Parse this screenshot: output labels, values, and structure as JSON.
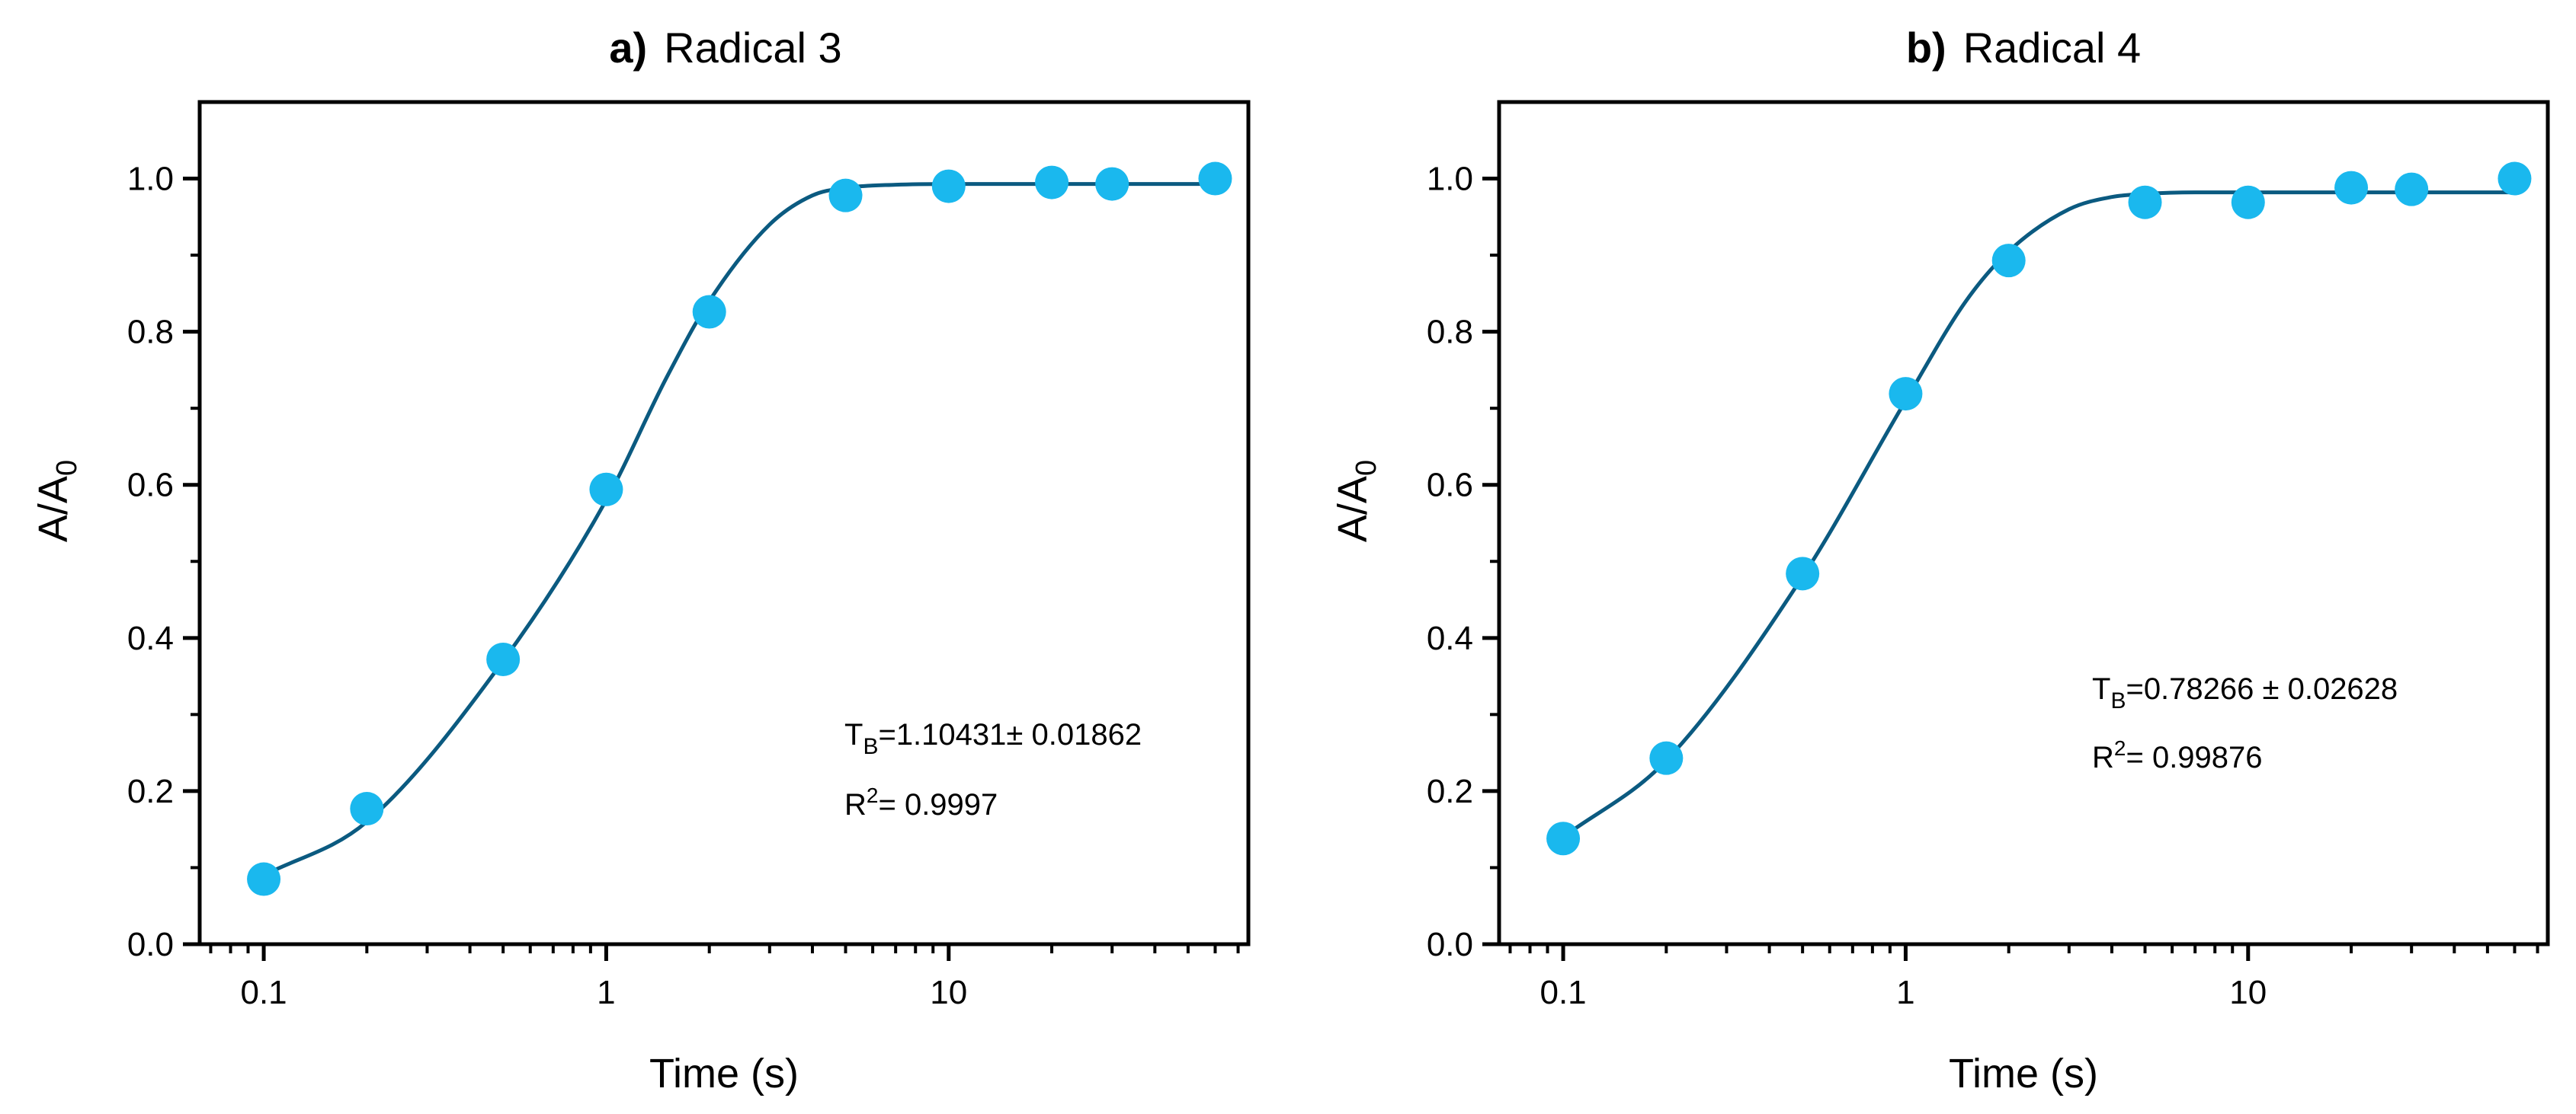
{
  "chart_data": [
    {
      "type": "scatter",
      "panel": "a)",
      "title": "Radical 3",
      "xlabel": "Time (s)",
      "ylabel": "A/A",
      "ylabel_sub": "0",
      "xscale": "log",
      "xlim": [
        0.065,
        75
      ],
      "ylim": [
        0.0,
        1.1
      ],
      "xticks": [
        0.1,
        1,
        10
      ],
      "xtick_labels": [
        "0.1",
        "1",
        "10"
      ],
      "yticks": [
        0.0,
        0.2,
        0.4,
        0.6,
        0.8,
        1.0
      ],
      "ytick_labels": [
        "0.0",
        "0.2",
        "0.4",
        "0.6",
        "0.8",
        "1.0"
      ],
      "series": [
        {
          "name": "data",
          "color": "#1ab8ee",
          "x": [
            0.1,
            0.2,
            0.5,
            1,
            2,
            5,
            10,
            20,
            30,
            60
          ],
          "y": [
            0.085,
            0.177,
            0.372,
            0.594,
            0.826,
            0.978,
            0.99,
            0.995,
            0.993,
            1.0
          ]
        },
        {
          "name": "fit",
          "color": "#0b5a80",
          "style": "line",
          "x": [
            0.1,
            0.2,
            0.5,
            1,
            1.5,
            2,
            3,
            4,
            5,
            7,
            10,
            20,
            60
          ],
          "y": [
            0.09,
            0.16,
            0.37,
            0.58,
            0.74,
            0.84,
            0.94,
            0.978,
            0.988,
            0.992,
            0.993,
            0.993,
            0.993
          ]
        }
      ],
      "annotations": {
        "tb_main": "T",
        "tb_sub": "B",
        "tb_value": "=1.10431± 0.01862",
        "r2_main": "R",
        "r2_sup": "2",
        "r2_value": "= 0.9997"
      }
    },
    {
      "type": "scatter",
      "panel": "b)",
      "title": "Radical 4",
      "xlabel": "Time (s)",
      "ylabel": "A/A",
      "ylabel_sub": "0",
      "xscale": "log",
      "xlim": [
        0.065,
        75
      ],
      "ylim": [
        0.0,
        1.1
      ],
      "xticks": [
        0.1,
        1,
        10
      ],
      "xtick_labels": [
        "0.1",
        "1",
        "10"
      ],
      "yticks": [
        0.0,
        0.2,
        0.4,
        0.6,
        0.8,
        1.0
      ],
      "ytick_labels": [
        "0.0",
        "0.2",
        "0.4",
        "0.6",
        "0.8",
        "1.0"
      ],
      "series": [
        {
          "name": "data",
          "color": "#1ab8ee",
          "x": [
            0.1,
            0.2,
            0.5,
            1,
            2,
            5,
            10,
            20,
            30,
            60
          ],
          "y": [
            0.138,
            0.243,
            0.484,
            0.719,
            0.893,
            0.969,
            0.969,
            0.988,
            0.986,
            1.0
          ]
        },
        {
          "name": "fit",
          "color": "#0b5a80",
          "style": "line",
          "x": [
            0.1,
            0.2,
            0.5,
            1,
            1.5,
            2,
            3,
            4,
            5,
            7,
            10,
            20,
            60
          ],
          "y": [
            0.14,
            0.24,
            0.48,
            0.71,
            0.84,
            0.905,
            0.96,
            0.976,
            0.98,
            0.982,
            0.982,
            0.982,
            0.982
          ]
        }
      ],
      "annotations": {
        "tb_main": "T",
        "tb_sub": "B",
        "tb_value": "=0.78266 ± 0.02628",
        "r2_main": "R",
        "r2_sup": "2",
        "r2_value": "= 0.99876"
      }
    }
  ]
}
